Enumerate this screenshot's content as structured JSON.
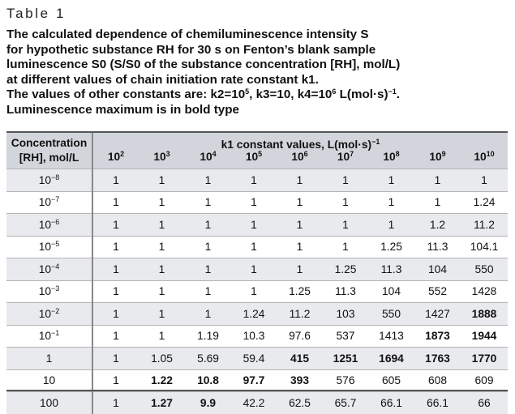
{
  "table_label": "Table 1",
  "caption": {
    "line1": "The calculated dependence of chemiluminescence intensity S",
    "line2": "for hypothetic substance RH for 30 s on Fenton’s blank sample",
    "line3": "luminescence S0 (S/S0 of the substance concentration [RH], mol/L)",
    "line4": "at different values of chain initiation rate constant k1.",
    "line5_a": "The values of other constants are: k2=10",
    "line5_k2_exp": "5",
    "line5_b": ", k3=10, k4=10",
    "line5_k4_exp": "6",
    "line5_c": " L(mol·s)",
    "line5_unit_exp": "−1",
    "line5_d": ".",
    "line6": "Luminescence maximum is in bold type"
  },
  "header": {
    "conc_line1": "Concentration",
    "conc_line2": "[RH], mol/L",
    "k1_title": "k1 constant values, L(mol·s)",
    "k1_exp": "−1",
    "base": "10",
    "exponents": [
      "2",
      "3",
      "4",
      "5",
      "6",
      "7",
      "8",
      "9",
      "10"
    ]
  },
  "rows": [
    {
      "conc": {
        "base": "10",
        "exp": "−8"
      },
      "tint": true,
      "values": [
        "1",
        "1",
        "1",
        "1",
        "1",
        "1",
        "1",
        "1",
        "1"
      ],
      "bold": []
    },
    {
      "conc": {
        "base": "10",
        "exp": "−7"
      },
      "tint": false,
      "values": [
        "1",
        "1",
        "1",
        "1",
        "1",
        "1",
        "1",
        "1",
        "1.24"
      ],
      "bold": []
    },
    {
      "conc": {
        "base": "10",
        "exp": "−6"
      },
      "tint": true,
      "values": [
        "1",
        "1",
        "1",
        "1",
        "1",
        "1",
        "1",
        "1.2",
        "11.2"
      ],
      "bold": []
    },
    {
      "conc": {
        "base": "10",
        "exp": "−5"
      },
      "tint": false,
      "values": [
        "1",
        "1",
        "1",
        "1",
        "1",
        "1",
        "1.25",
        "11.3",
        "104.1"
      ],
      "bold": []
    },
    {
      "conc": {
        "base": "10",
        "exp": "−4"
      },
      "tint": true,
      "values": [
        "1",
        "1",
        "1",
        "1",
        "1",
        "1.25",
        "11.3",
        "104",
        "550"
      ],
      "bold": []
    },
    {
      "conc": {
        "base": "10",
        "exp": "−3"
      },
      "tint": false,
      "values": [
        "1",
        "1",
        "1",
        "1",
        "1.25",
        "11.3",
        "104",
        "552",
        "1428"
      ],
      "bold": []
    },
    {
      "conc": {
        "base": "10",
        "exp": "−2"
      },
      "tint": true,
      "values": [
        "1",
        "1",
        "1",
        "1.24",
        "11.2",
        "103",
        "550",
        "1427",
        "1888"
      ],
      "bold": [
        8
      ]
    },
    {
      "conc": {
        "base": "10",
        "exp": "−1"
      },
      "tint": false,
      "values": [
        "1",
        "1",
        "1.19",
        "10.3",
        "97.6",
        "537",
        "1413",
        "1873",
        "1944"
      ],
      "bold": [
        7,
        8
      ]
    },
    {
      "conc": {
        "base": "1",
        "exp": ""
      },
      "tint": true,
      "values": [
        "1",
        "1.05",
        "5.69",
        "59.4",
        "415",
        "1251",
        "1694",
        "1763",
        "1770"
      ],
      "bold": [
        4,
        5,
        6,
        7,
        8
      ]
    },
    {
      "conc": {
        "base": "10",
        "exp": ""
      },
      "tint": false,
      "values": [
        "1",
        "1.22",
        "10.8",
        "97.7",
        "393",
        "576",
        "605",
        "608",
        "609"
      ],
      "bold": [
        1,
        2,
        3,
        4
      ]
    },
    {
      "conc": {
        "base": "100",
        "exp": ""
      },
      "tint": true,
      "values": [
        "1",
        "1.27",
        "9.9",
        "42.2",
        "62.5",
        "65.7",
        "66.1",
        "66.1",
        "66"
      ],
      "bold": [
        1,
        2
      ]
    }
  ]
}
